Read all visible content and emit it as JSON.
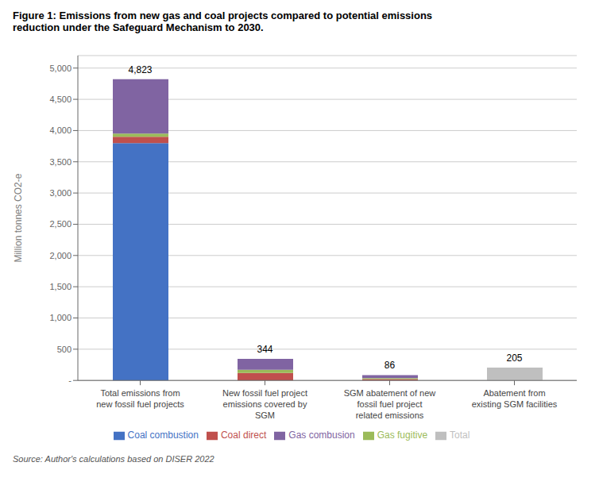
{
  "chart_data": {
    "type": "bar",
    "title": "Figure 1: Emissions from new gas and coal projects compared to potential emissions\nreduction under the Safeguard Mechanism to 2030.",
    "categories": [
      "Total emissions from\nnew fossil fuel projects",
      "New fossil fuel project\nemissions covered by\nSGM",
      "SGM abatement of new\nfossil fuel project\nrelated emissions",
      "Abatement from\nexisting SGM facilities"
    ],
    "series": [
      {
        "name": "Coal combustion",
        "color": "#4472C4",
        "values": [
          3800,
          0,
          0,
          0
        ]
      },
      {
        "name": "Coal direct",
        "color": "#C0504D",
        "values": [
          100,
          120,
          20,
          0
        ]
      },
      {
        "name": "Gas fugitive",
        "color": "#9BBB59",
        "values": [
          50,
          50,
          16,
          0
        ]
      },
      {
        "name": "Gas combusion",
        "color": "#8064A2",
        "values": [
          873,
          174,
          50,
          0
        ]
      },
      {
        "name": "Total",
        "color": "#BFBFBF",
        "values": [
          0,
          0,
          0,
          205
        ]
      }
    ],
    "totals": [
      4823,
      344,
      86,
      205
    ],
    "total_labels": [
      "4,823",
      "344",
      "86",
      "205"
    ],
    "ylabel": "Million tonnes CO2-e",
    "ylim": [
      0,
      5200
    ],
    "yticks": [
      {
        "value": 0,
        "label": "-"
      },
      500,
      {
        "value": 1000,
        "label": "1,000"
      },
      {
        "value": 1500,
        "label": "1,500"
      },
      {
        "value": 2000,
        "label": "2,000"
      },
      {
        "value": 2500,
        "label": "2,500"
      },
      {
        "value": 3000,
        "label": "3,000"
      },
      {
        "value": 3500,
        "label": "3,500"
      },
      {
        "value": 4000,
        "label": "4,000"
      },
      {
        "value": 4500,
        "label": "4,500"
      },
      {
        "value": 5000,
        "label": "5,000"
      }
    ],
    "stacked": true,
    "grid": true,
    "legend": "bottom",
    "source": "Source: Author's calculations based on DISER 2022"
  }
}
